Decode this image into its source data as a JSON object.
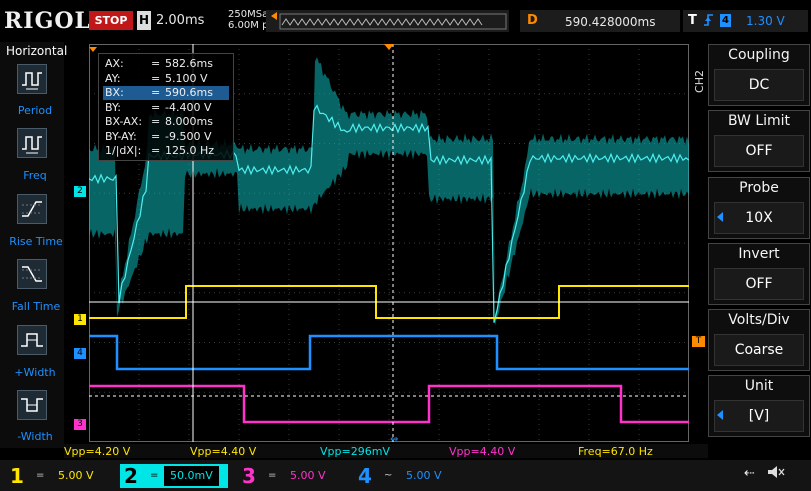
{
  "top": {
    "brand": "RIGOL",
    "status": "STOP",
    "h_label": "H",
    "timebase": "2.00ms",
    "sample_rate": "250MSa/s",
    "mem_depth": "6.00M pts",
    "trig_label": "D",
    "trig_time": "590.428000ms",
    "trig_type": "T",
    "trig_channel": "4",
    "trig_level": "1.30 V"
  },
  "left_menu": {
    "title": "Horizontal",
    "items": [
      "Period",
      "Freq",
      "Rise Time",
      "Fall Time",
      "+Width",
      "-Width"
    ]
  },
  "right_menu": {
    "channel": "CH2",
    "items": [
      {
        "title": "Coupling",
        "value": "DC"
      },
      {
        "title": "BW Limit",
        "value": "OFF"
      },
      {
        "title": "Probe",
        "value": "10X"
      },
      {
        "title": "Invert",
        "value": "OFF"
      },
      {
        "title": "Volts/Div",
        "value": "Coarse"
      },
      {
        "title": "Unit",
        "value": "[V]"
      }
    ]
  },
  "cursor": {
    "rows": [
      {
        "k": "AX:",
        "v": "582.6ms"
      },
      {
        "k": "AY:",
        "v": "5.100 V"
      },
      {
        "k": "BX:",
        "v": "590.6ms"
      },
      {
        "k": "BY:",
        "v": "-4.400 V"
      },
      {
        "k": "BX-AX:",
        "v": "8.000ms"
      },
      {
        "k": "BY-AY:",
        "v": "-9.500 V"
      },
      {
        "k": "1/|dX|:",
        "v": "125.0 Hz"
      }
    ],
    "eq": "="
  },
  "measurements": [
    {
      "text": "Vpp=4.20 V",
      "color": "#ffe600"
    },
    {
      "text": "Vpp=4.40 V",
      "color": "#ffe600"
    },
    {
      "text": "Vpp=296mV",
      "color": "#00e5e5"
    },
    {
      "text": "Vpp=4.40 V",
      "color": "#ff33cc"
    },
    {
      "text": "Freq=67.0 Hz",
      "color": "#ffe600"
    }
  ],
  "channels": [
    {
      "num": "1",
      "coupling": "=",
      "scale": "5.00 V",
      "color": "#ffe600"
    },
    {
      "num": "2",
      "coupling": "=",
      "scale": "50.0mV",
      "color": "#00e5e5"
    },
    {
      "num": "3",
      "coupling": "=",
      "scale": "5.00 V",
      "color": "#ff33cc"
    },
    {
      "num": "4",
      "coupling": "~",
      "scale": "5.00 V",
      "color": "#1e90ff"
    }
  ],
  "markers": {
    "ch1": "1",
    "ch2": "2",
    "ch3": "3",
    "ch4": "4",
    "trig": "T"
  },
  "colors": {
    "ch1": "#ffe600",
    "ch2": "#00e5e5",
    "ch3": "#ff33cc",
    "ch4": "#1e90ff",
    "accent": "#ff8a00"
  }
}
